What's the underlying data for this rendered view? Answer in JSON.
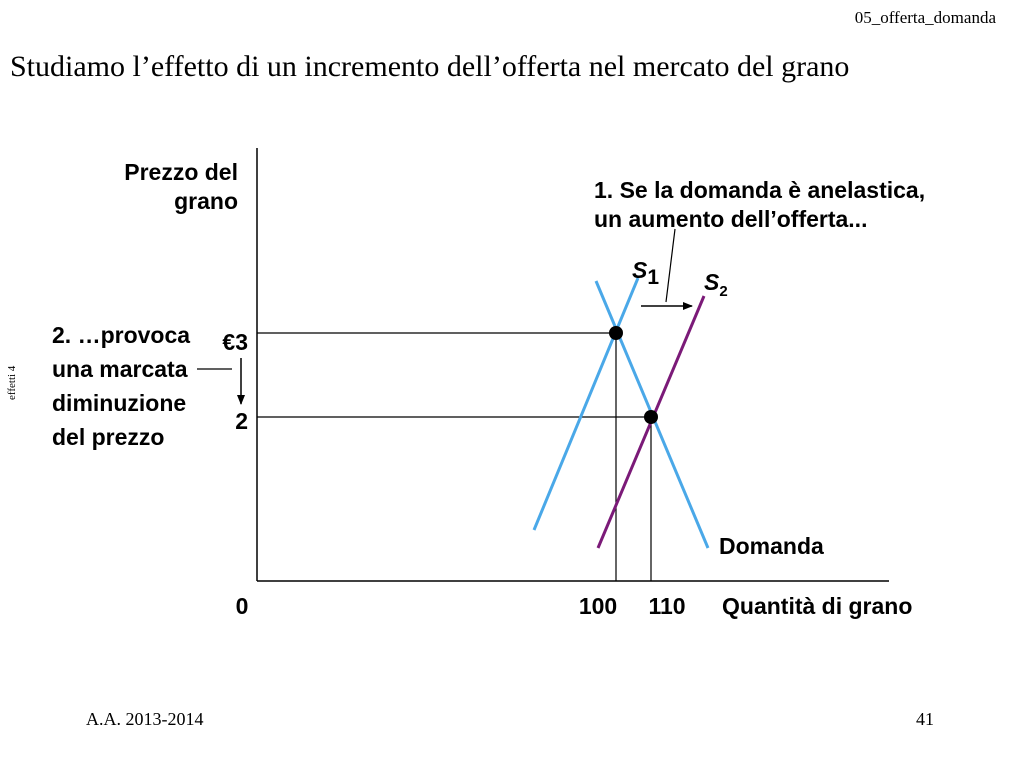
{
  "header": {
    "file_tag": "05_offerta_domanda"
  },
  "slide": {
    "title": "Studiamo l’effetto di un incremento dell’offerta nel mercato del grano",
    "side_tag": "effetti 4",
    "footer_left": "A.A. 2013-2014",
    "page_number": "41"
  },
  "colors": {
    "axis": "#000000",
    "demand": "#4aa8e8",
    "supply1": "#4aa8e8",
    "supply2": "#7b1a78",
    "point": "#000000"
  },
  "diagram": {
    "y_label_line1": "Prezzo del",
    "y_label_line2": "grano",
    "x_label": "Quantità di grano",
    "origin_label": "0",
    "price_high_label": "€3",
    "price_low_label": "2",
    "qty_low_label": "100",
    "qty_high_label": "110",
    "demand_label": "Domanda",
    "s1_label": "S",
    "s1_sub": "1",
    "s2_label": "S",
    "s2_sub": "2",
    "annotation1_line1": "1. Se la domanda è anelastica,",
    "annotation1_line2": "un aumento dell’offerta...",
    "annotation2_line1": "2. …provoca",
    "annotation2_line2": "una marcata",
    "annotation2_line3": "diminuzione",
    "annotation2_line4": "del prezzo",
    "equilibria": [
      {
        "price": 3,
        "quantity": 100
      },
      {
        "price": 2,
        "quantity": 110
      }
    ]
  }
}
